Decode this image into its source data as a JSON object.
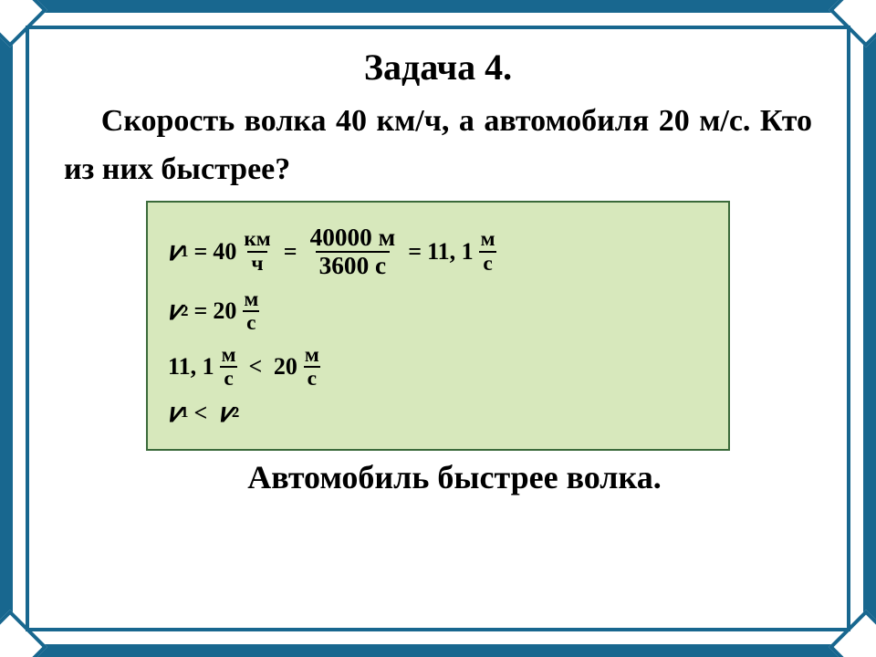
{
  "colors": {
    "frame": "#18678f",
    "box_bg": "#d7e8bc",
    "box_border": "#3a6a3a"
  },
  "title": "Задача 4.",
  "problem": "Скорость волка 40 км/ч, а автомобиля 20 м/с. Кто из них быстрее?",
  "answer": "Автомобиль быстрее волка.",
  "eq1": {
    "var": "𝑣",
    "sub": "1",
    "val1": "40",
    "u1_num": "км",
    "u1_den": "ч",
    "conv_num": "40000 м",
    "conv_den": "3600 с",
    "result": "11, 1",
    "ur_num": "м",
    "ur_den": "с"
  },
  "eq2": {
    "var": "𝑣",
    "sub": "2",
    "val": "20",
    "u_num": "м",
    "u_den": "с"
  },
  "cmp": {
    "left_val": "11, 1",
    "left_unum": "м",
    "left_uden": "с",
    "op": "<",
    "right_val": "20",
    "right_unum": "м",
    "right_uden": "с"
  },
  "final": {
    "lvar": "𝑣",
    "lsub": "1",
    "op": "<",
    "rvar": "𝑣",
    "rsub": "2"
  }
}
